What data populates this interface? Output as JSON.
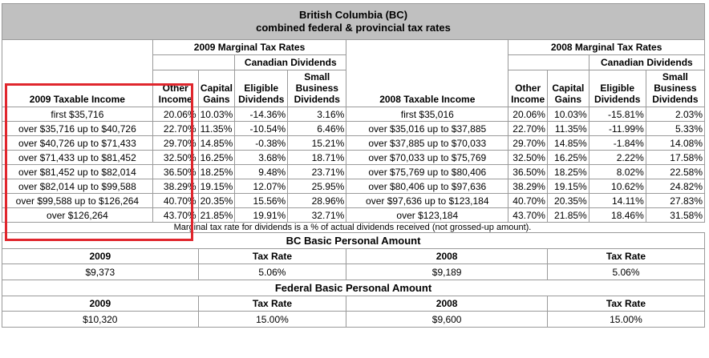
{
  "title_line1": "British Columbia (BC)",
  "title_line2": "combined federal & provincial tax rates",
  "header": {
    "rates_2009": "2009 Marginal Tax Rates",
    "rates_2008": "2008 Marginal Tax Rates",
    "canadian_dividends": "Canadian Dividends",
    "income_2009": "2009 Taxable Income",
    "income_2008": "2008 Taxable Income",
    "other_income": "Other Income",
    "capital_gains": "Capital Gains",
    "eligible_dividends": "Eligible Dividends",
    "small_business_dividends": "Small Business Dividends"
  },
  "rows": [
    {
      "inc09": "first $35,716",
      "o09": "20.06%",
      "cg09": "10.03%",
      "ed09": "-14.36%",
      "sb09": "3.16%",
      "inc08": "first $35,016",
      "o08": "20.06%",
      "cg08": "10.03%",
      "ed08": "-15.81%",
      "sb08": "2.03%"
    },
    {
      "inc09": "over $35,716 up to $40,726",
      "o09": "22.70%",
      "cg09": "11.35%",
      "ed09": "-10.54%",
      "sb09": "6.46%",
      "inc08": "over $35,016 up to $37,885",
      "o08": "22.70%",
      "cg08": "11.35%",
      "ed08": "-11.99%",
      "sb08": "5.33%"
    },
    {
      "inc09": "over $40,726 up to $71,433",
      "o09": "29.70%",
      "cg09": "14.85%",
      "ed09": "-0.38%",
      "sb09": "15.21%",
      "inc08": "over $37,885 up to $70,033",
      "o08": "29.70%",
      "cg08": "14.85%",
      "ed08": "-1.84%",
      "sb08": "14.08%"
    },
    {
      "inc09": "over $71,433 up to $81,452",
      "o09": "32.50%",
      "cg09": "16.25%",
      "ed09": "3.68%",
      "sb09": "18.71%",
      "inc08": "over $70,033 up to $75,769",
      "o08": "32.50%",
      "cg08": "16.25%",
      "ed08": "2.22%",
      "sb08": "17.58%"
    },
    {
      "inc09": "over $81,452 up to $82,014",
      "o09": "36.50%",
      "cg09": "18.25%",
      "ed09": "9.48%",
      "sb09": "23.71%",
      "inc08": "over $75,769 up to $80,406",
      "o08": "36.50%",
      "cg08": "18.25%",
      "ed08": "8.02%",
      "sb08": "22.58%"
    },
    {
      "inc09": "over $82,014 up to $99,588",
      "o09": "38.29%",
      "cg09": "19.15%",
      "ed09": "12.07%",
      "sb09": "25.95%",
      "inc08": "over $80,406 up to $97,636",
      "o08": "38.29%",
      "cg08": "19.15%",
      "ed08": "10.62%",
      "sb08": "24.82%"
    },
    {
      "inc09": "over $99,588 up to $126,264",
      "o09": "40.70%",
      "cg09": "20.35%",
      "ed09": "15.56%",
      "sb09": "28.96%",
      "inc08": "over $97,636 up to $123,184",
      "o08": "40.70%",
      "cg08": "20.35%",
      "ed08": "14.11%",
      "sb08": "27.83%"
    },
    {
      "inc09": "over $126,264",
      "o09": "43.70%",
      "cg09": "21.85%",
      "ed09": "19.91%",
      "sb09": "32.71%",
      "inc08": "over $123,184",
      "o08": "43.70%",
      "cg08": "21.85%",
      "ed08": "18.46%",
      "sb08": "31.58%"
    }
  ],
  "note": "Marginal tax rate for dividends is a % of actual dividends received (not grossed-up amount).",
  "bc_basic": {
    "title": "BC Basic Personal Amount",
    "y2009": "2009",
    "tax_rate_a": "Tax Rate",
    "y2008": "2008",
    "tax_rate_b": "Tax Rate",
    "amt2009": "$9,373",
    "rate2009": "5.06%",
    "amt2008": "$9,189",
    "rate2008": "5.06%"
  },
  "fed_basic": {
    "title": "Federal Basic Personal Amount",
    "y2009": "2009",
    "tax_rate_a": "Tax Rate",
    "y2008": "2008",
    "tax_rate_b": "Tax Rate",
    "amt2009": "$10,320",
    "rate2009": "15.00%",
    "amt2008": "$9,600",
    "rate2008": "15.00%"
  },
  "colors": {
    "title_bg": "#c0c0c0",
    "highlight": "#e0262d",
    "border": "#9a9a9a"
  }
}
